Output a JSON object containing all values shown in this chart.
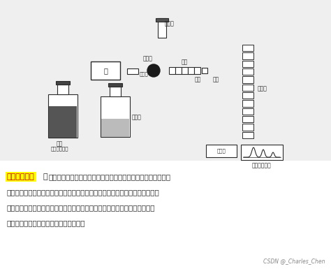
{
  "bg_color": "#d8d8d8",
  "diagram_bg": "#e8e8e8",
  "text_bg": "#ffffff",
  "highlight_color": "#ffff00",
  "highlight_text": "其工作流程为",
  "colon": "：",
  "body_text_line1": "高压输液泵将贮液器中的流动相以稳定的流速（或压力）输送至",
  "body_text_line2": "分析体系，在色谱柱之前通过进样器将样品导人，流动相将样品依次带入预柱、",
  "body_text_line3": "色谱柱，在色谱柱中各组分被分离，并依次随流动相流至检测器，检测到的信",
  "body_text_line4": "号送至数据处理系统记录、处理和保存。",
  "watermark": "CSDN @_Charles_Chen",
  "label_zhushexie": "注射器",
  "label_jinyangqi": "进样器",
  "label_beng": "泵",
  "label_hejianshi": "混合室",
  "label_yuzhu": "预柱",
  "label_jietou": "接头",
  "label_seputuzhu": "色谱柱",
  "label_rongji": "溶剂",
  "label_gaoyashuru": "高压输液系统",
  "label_zhuyeqi": "贮液器",
  "label_jianceqi": "检测器",
  "label_shujuchuli": "数据处理系统"
}
